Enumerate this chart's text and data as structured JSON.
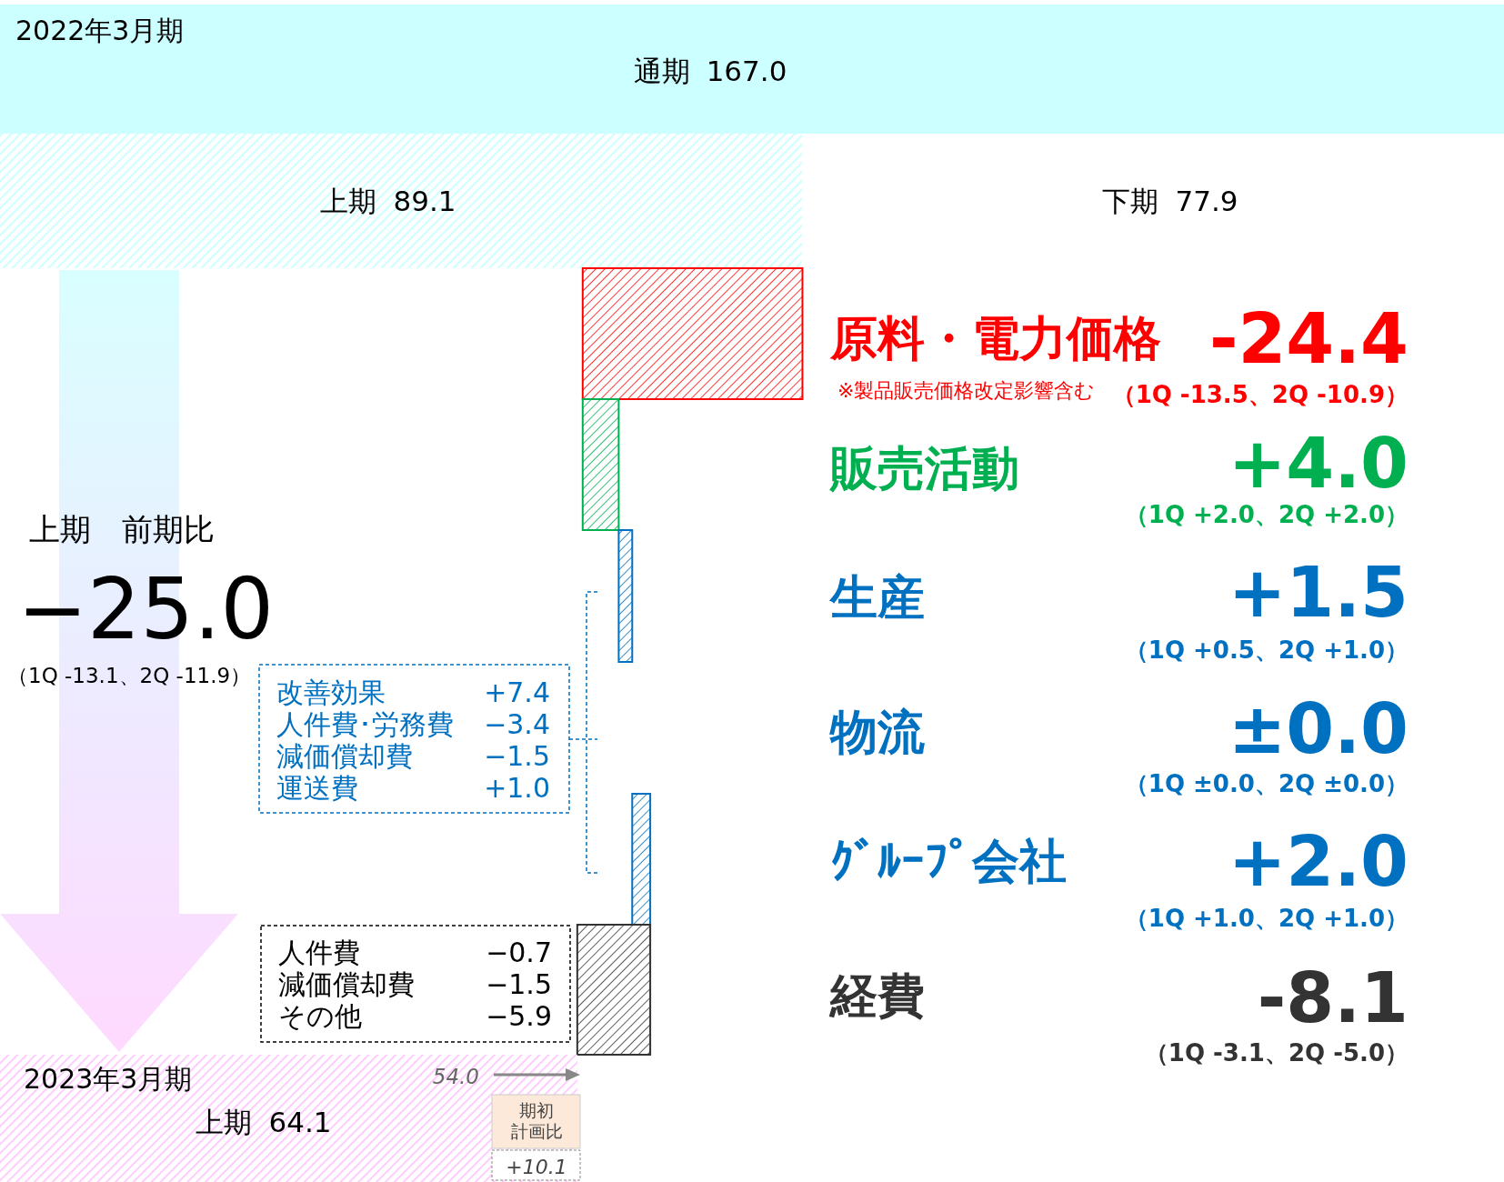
{
  "chart_data": {
    "type": "other",
    "categories": [
      "通期",
      "上期",
      "下期",
      "原料・電力価格",
      "販売活動",
      "生産",
      "物流",
      "ｸﾞﾙｰﾌﾟ会社",
      "経費",
      "上期"
    ],
    "values": [
      167.0,
      89.1,
      77.9,
      -24.4,
      4.0,
      1.5,
      0.0,
      2.0,
      -8.1,
      64.1
    ],
    "value_labels": [
      "167.0",
      "89.1",
      "77.9",
      "-24.4",
      "+4.0",
      "+1.5",
      "±0.0",
      "+2.0",
      "-8.1",
      "64.1"
    ],
    "colors": [
      "#ccffff",
      "#ccffff",
      "#ffffff",
      "#ff0000",
      "#00b050",
      "#0070c0",
      "#0070c0",
      "#0070c0",
      "#333333",
      "#ffccff"
    ],
    "annotations": [
      "2022年3月期",
      "※製品販売価格改定影響含む",
      "（1Q -13.5、2Q -10.9）",
      "（1Q +2.0、2Q +2.0）",
      "（1Q +0.5、2Q +1.0）",
      "（1Q ±0.0、2Q ±0.0）",
      "（1Q +1.0、2Q +1.0）",
      "（1Q -3.1、2Q -5.0）",
      "上期　前期比",
      "−25.0",
      "（1Q -13.1、2Q -11.9）",
      "改善効果",
      "+7.4",
      "人件費･労務費",
      "−3.4",
      "減価償却費",
      "−1.5",
      "運送費",
      "+1.0",
      "人件費",
      "−0.7",
      "減価償却費",
      "−1.5",
      "その他",
      "−5.9",
      "2023年3月期",
      "54.0",
      "期初",
      "計画比",
      "+10.1"
    ]
  }
}
